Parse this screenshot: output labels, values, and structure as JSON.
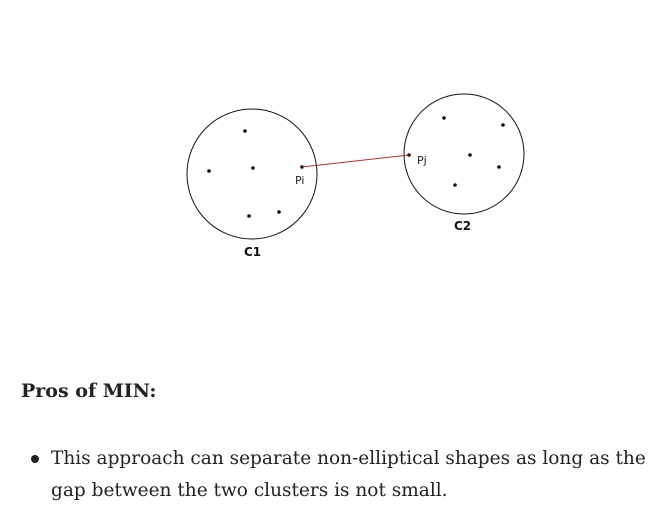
{
  "diagram": {
    "cluster1": {
      "name": "C1",
      "point_label": "Pi"
    },
    "cluster2": {
      "name": "C2",
      "point_label": "Pj"
    },
    "link_color": "#b03030"
  },
  "section": {
    "heading": "Pros of MIN:",
    "bullets": [
      "This approach can separate non-elliptical shapes as long as the gap between the two clusters is not small."
    ]
  }
}
